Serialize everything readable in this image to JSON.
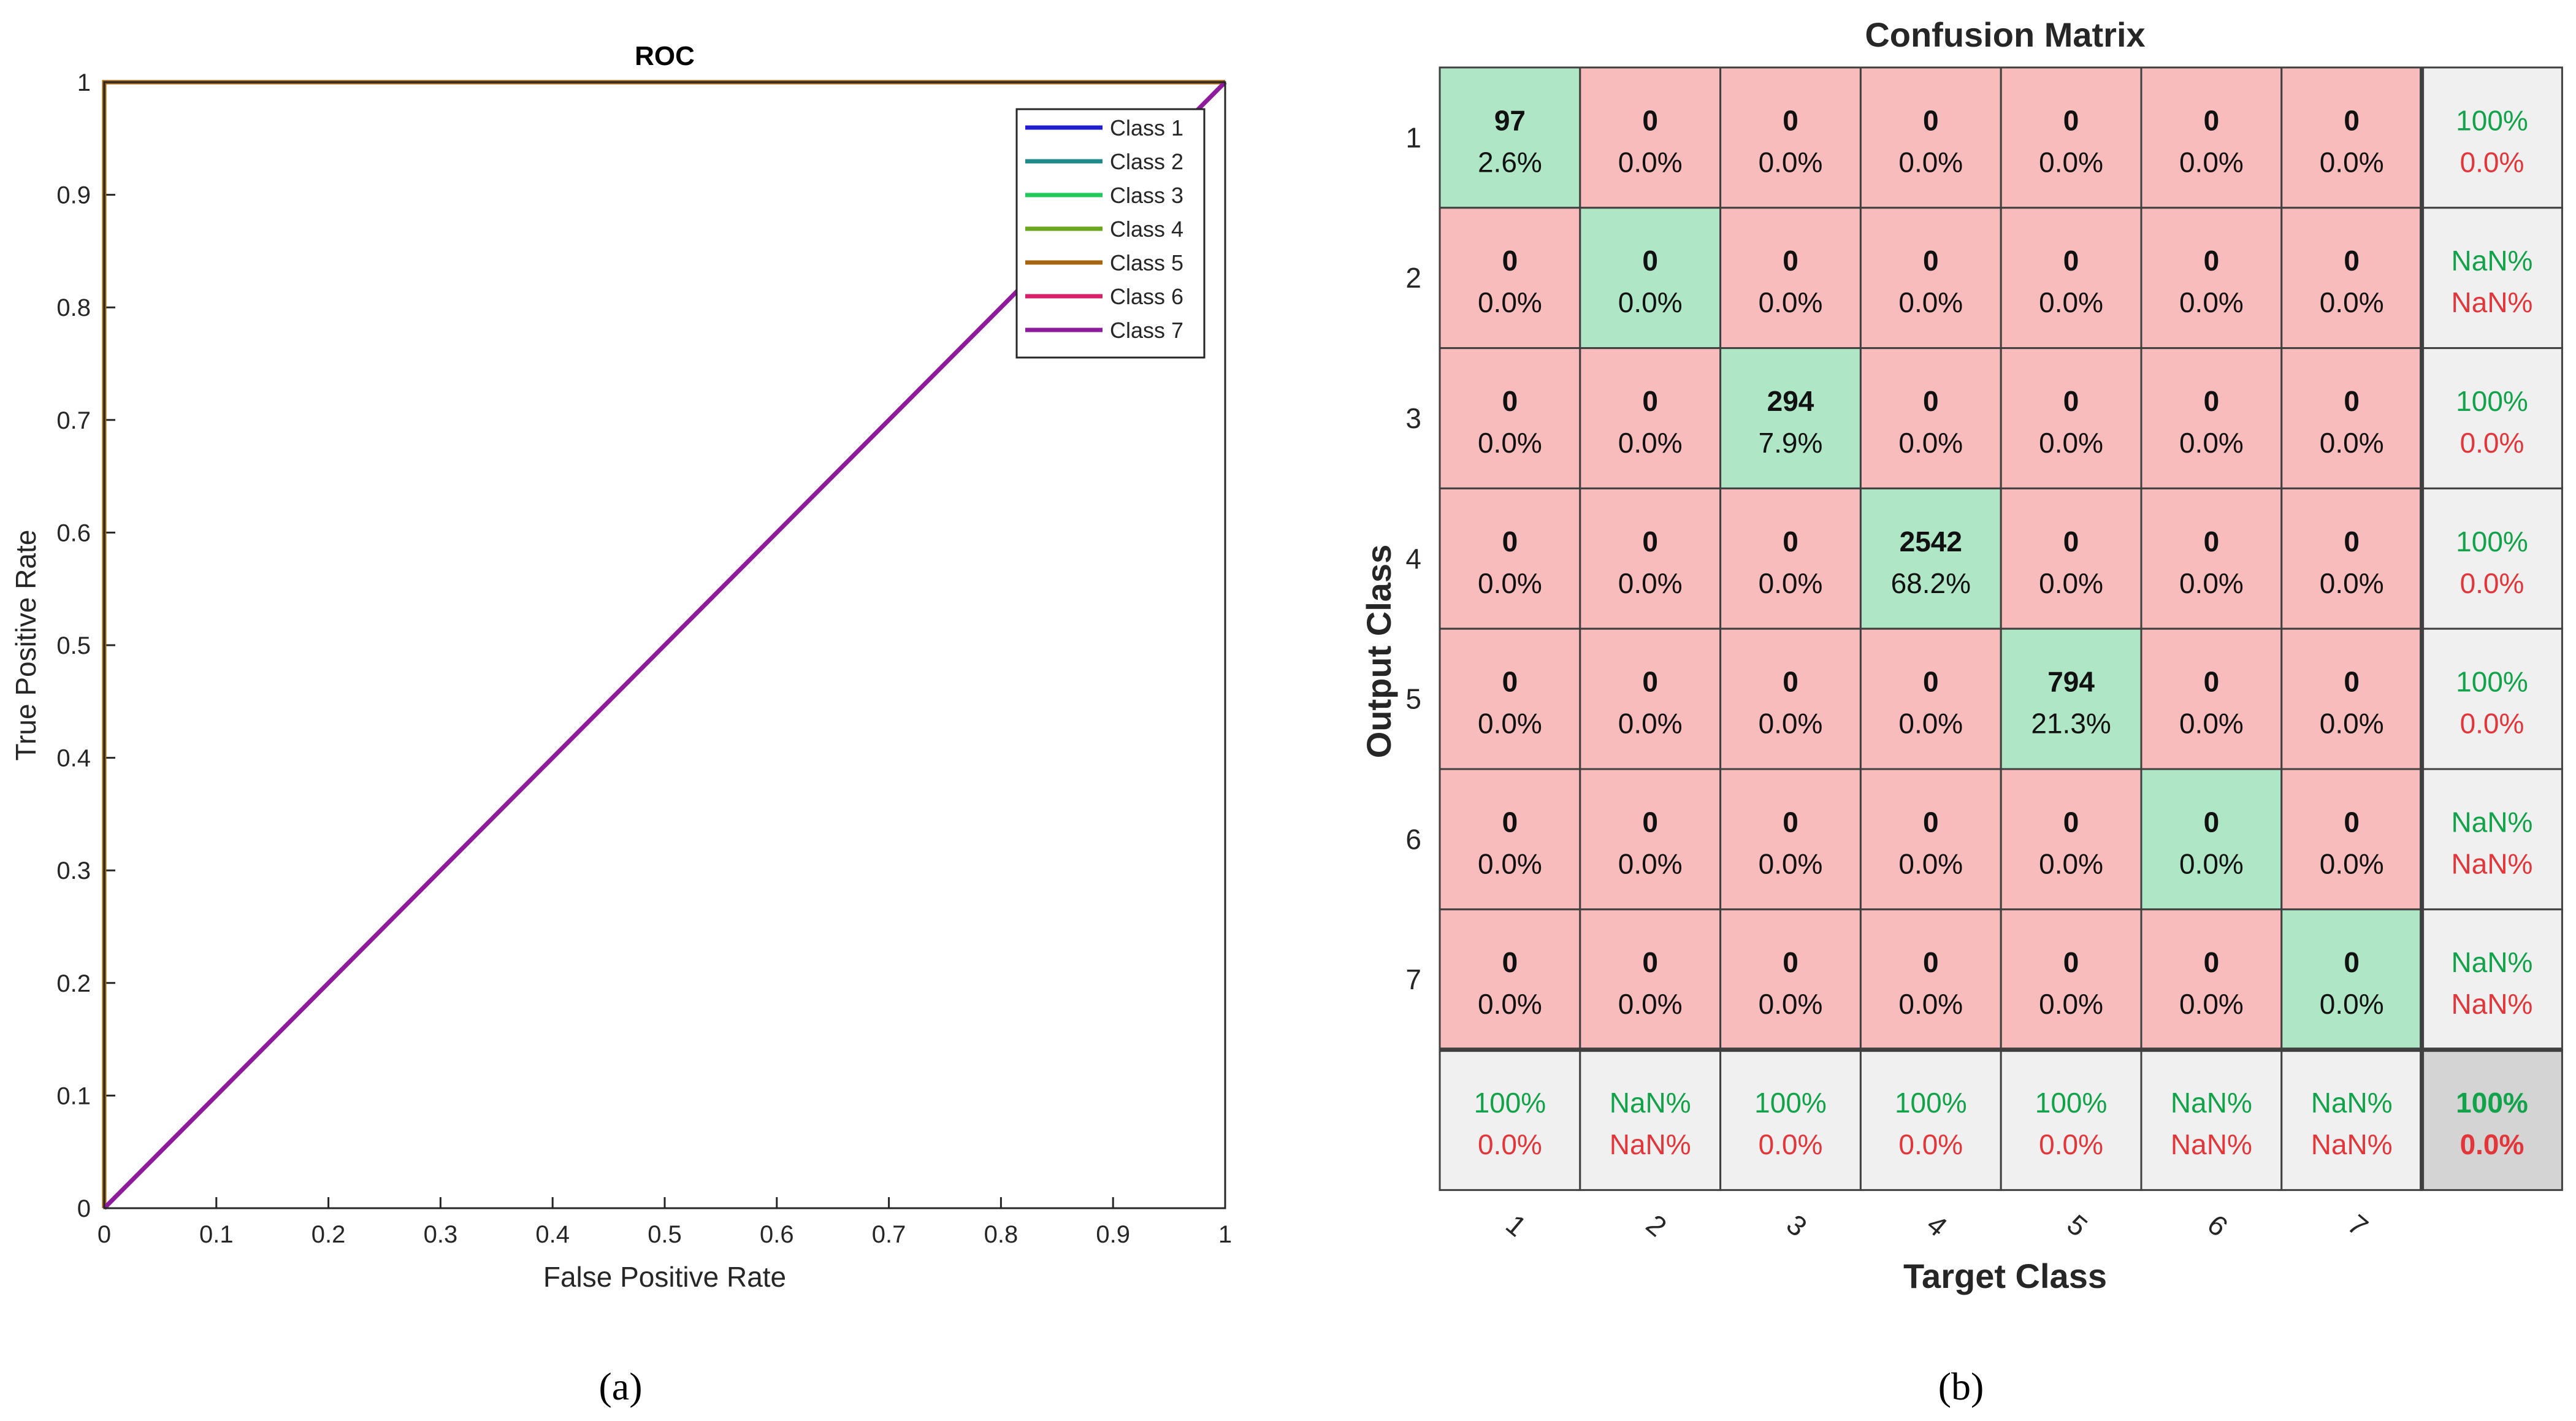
{
  "panel_labels": {
    "a": "(a)",
    "b": "(b)"
  },
  "chart_data": [
    {
      "type": "line",
      "title": "ROC",
      "xlabel": "False Positive Rate",
      "ylabel": "True Positive Rate",
      "xlim": [
        0,
        1
      ],
      "ylim": [
        0,
        1
      ],
      "xticks": [
        "0",
        "0.1",
        "0.2",
        "0.3",
        "0.4",
        "0.5",
        "0.6",
        "0.7",
        "0.8",
        "0.9",
        "1"
      ],
      "yticks": [
        "0",
        "0.1",
        "0.2",
        "0.3",
        "0.4",
        "0.5",
        "0.6",
        "0.7",
        "0.8",
        "0.9",
        "1"
      ],
      "legend_position": "top-right",
      "series": [
        {
          "name": "Class 1",
          "color": "#1f1fd1",
          "x": [
            0,
            0,
            1
          ],
          "y": [
            0,
            1,
            1
          ]
        },
        {
          "name": "Class 2",
          "color": "#1f8a8a",
          "x": [
            0,
            0,
            1
          ],
          "y": [
            0,
            1,
            1
          ]
        },
        {
          "name": "Class 3",
          "color": "#22c95a",
          "x": [
            0,
            0,
            1
          ],
          "y": [
            0,
            1,
            1
          ]
        },
        {
          "name": "Class 4",
          "color": "#6aa61e",
          "x": [
            0,
            0,
            1
          ],
          "y": [
            0,
            1,
            1
          ]
        },
        {
          "name": "Class 5",
          "color": "#a8650f",
          "x": [
            0,
            0,
            1
          ],
          "y": [
            0,
            1,
            1
          ]
        },
        {
          "name": "Class 6",
          "color": "#d8206a",
          "x": [
            0,
            1
          ],
          "y": [
            0,
            1
          ]
        },
        {
          "name": "Class 7",
          "color": "#8e1a9c",
          "x": [
            0,
            1
          ],
          "y": [
            0,
            1
          ]
        }
      ]
    },
    {
      "type": "heatmap",
      "title": "Confusion Matrix",
      "xlabel": "Target Class",
      "ylabel": "Output Class",
      "row_labels": [
        "1",
        "2",
        "3",
        "4",
        "5",
        "6",
        "7"
      ],
      "col_labels": [
        "1",
        "2",
        "3",
        "4",
        "5",
        "6",
        "7"
      ],
      "counts": [
        [
          97,
          0,
          0,
          0,
          0,
          0,
          0
        ],
        [
          0,
          0,
          0,
          0,
          0,
          0,
          0
        ],
        [
          0,
          0,
          294,
          0,
          0,
          0,
          0
        ],
        [
          0,
          0,
          0,
          2542,
          0,
          0,
          0
        ],
        [
          0,
          0,
          0,
          0,
          794,
          0,
          0
        ],
        [
          0,
          0,
          0,
          0,
          0,
          0,
          0
        ],
        [
          0,
          0,
          0,
          0,
          0,
          0,
          0
        ]
      ],
      "percents": [
        [
          "2.6%",
          "0.0%",
          "0.0%",
          "0.0%",
          "0.0%",
          "0.0%",
          "0.0%"
        ],
        [
          "0.0%",
          "0.0%",
          "0.0%",
          "0.0%",
          "0.0%",
          "0.0%",
          "0.0%"
        ],
        [
          "0.0%",
          "0.0%",
          "7.9%",
          "0.0%",
          "0.0%",
          "0.0%",
          "0.0%"
        ],
        [
          "0.0%",
          "0.0%",
          "0.0%",
          "68.2%",
          "0.0%",
          "0.0%",
          "0.0%"
        ],
        [
          "0.0%",
          "0.0%",
          "0.0%",
          "0.0%",
          "21.3%",
          "0.0%",
          "0.0%"
        ],
        [
          "0.0%",
          "0.0%",
          "0.0%",
          "0.0%",
          "0.0%",
          "0.0%",
          "0.0%"
        ],
        [
          "0.0%",
          "0.0%",
          "0.0%",
          "0.0%",
          "0.0%",
          "0.0%",
          "0.0%"
        ]
      ],
      "row_summary": [
        [
          "100%",
          "0.0%"
        ],
        [
          "NaN%",
          "NaN%"
        ],
        [
          "100%",
          "0.0%"
        ],
        [
          "100%",
          "0.0%"
        ],
        [
          "100%",
          "0.0%"
        ],
        [
          "NaN%",
          "NaN%"
        ],
        [
          "NaN%",
          "NaN%"
        ]
      ],
      "col_summary": [
        [
          "100%",
          "0.0%"
        ],
        [
          "NaN%",
          "NaN%"
        ],
        [
          "100%",
          "0.0%"
        ],
        [
          "100%",
          "0.0%"
        ],
        [
          "100%",
          "0.0%"
        ],
        [
          "NaN%",
          "NaN%"
        ],
        [
          "NaN%",
          "NaN%"
        ]
      ],
      "overall": [
        "100%",
        "0.0%"
      ],
      "colors": {
        "diag": "#aee6c6",
        "offdiag": "#f8bcbc",
        "summary": "#f0f0f0",
        "overall": "#d4d4d4",
        "correct_text": "#12a34a",
        "wrong_text": "#e2363b"
      }
    }
  ]
}
